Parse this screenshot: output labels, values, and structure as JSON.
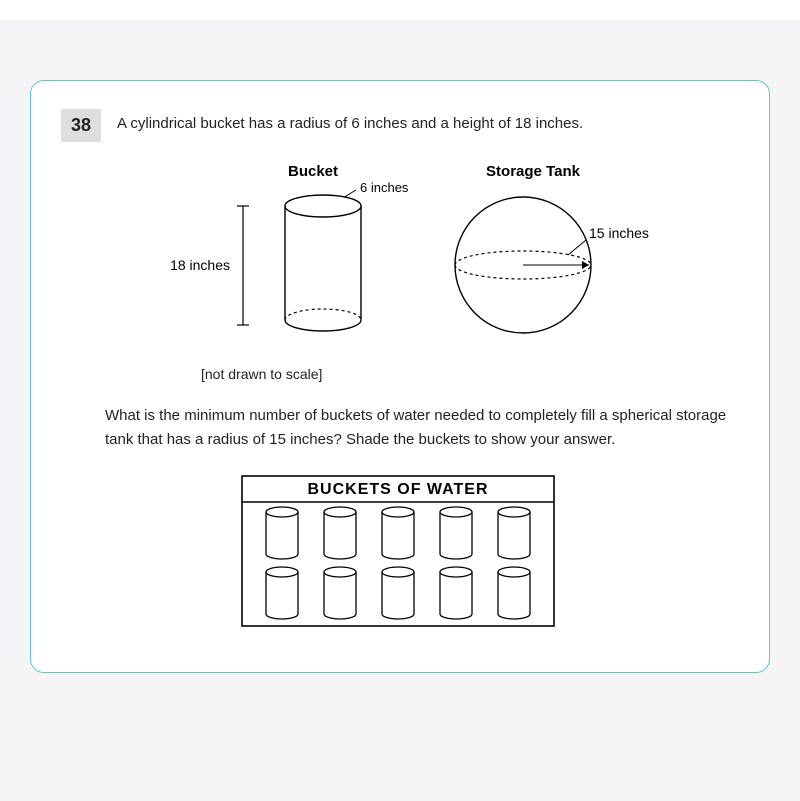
{
  "question": {
    "number": "38",
    "prompt": "A cylindrical bucket has a radius of 6 inches and a height of 18 inches.",
    "followup": "What is the minimum number of buckets of water needed to completely fill a spherical storage tank that has a radius of 15 inches? Shade the buckets to show your answer.",
    "scale_note": "[not drawn to scale]"
  },
  "diagram": {
    "bucket": {
      "title": "Bucket",
      "radius_label": "6 inches",
      "height_label": "18 inches"
    },
    "tank": {
      "title": "Storage Tank",
      "radius_label": "15 inches"
    },
    "colors": {
      "stroke": "#000000",
      "bg": "#ffffff",
      "text": "#000000"
    }
  },
  "answer_grid": {
    "title": "BUCKETS OF WATER",
    "rows": 2,
    "cols": 5
  }
}
